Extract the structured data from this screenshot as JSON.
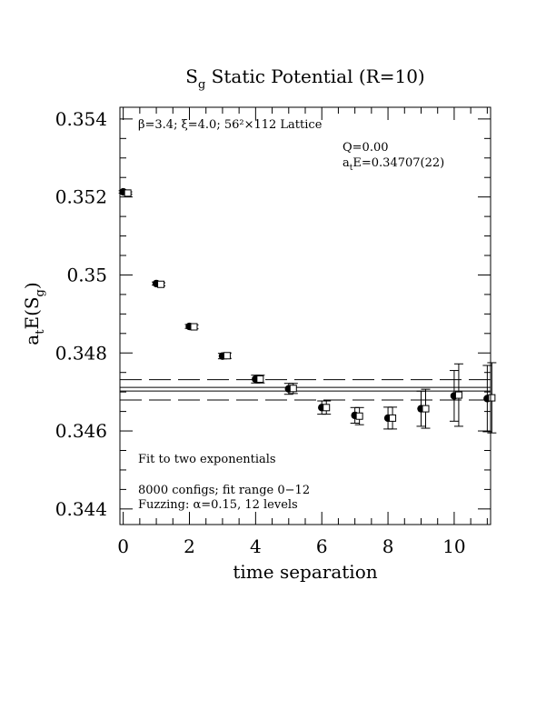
{
  "chart_data": {
    "type": "scatter",
    "title": {
      "main": "S",
      "sub": "g",
      "rest": " Static Potential (R=10)"
    },
    "xlabel": "time separation",
    "ylabel": {
      "a": "a",
      "a_sub": "t",
      "mid": "E(S",
      "s_sub": "g",
      "end": ")"
    },
    "xlim": [
      -0.1,
      11.1
    ],
    "ylim": [
      0.3436,
      0.3543
    ],
    "x_ticks": [
      0,
      2,
      4,
      6,
      8,
      10
    ],
    "x_tick_labels": [
      "0",
      "2",
      "4",
      "6",
      "8",
      "10"
    ],
    "y_ticks": [
      0.344,
      0.346,
      0.348,
      0.35,
      0.352,
      0.354
    ],
    "y_tick_labels": [
      "0.344",
      "0.346",
      "0.348",
      "0.35",
      "0.352",
      "0.354"
    ],
    "x_minor_step": 0.5,
    "y_minor_step": 0.0005,
    "annotations": {
      "lattice": "β=3.4; ξ=4.0; 56²×112 Lattice",
      "q": "Q=0.00",
      "fit_a": "a",
      "fit_sub": "t",
      "fit_rest": "E=0.34707(22)",
      "fit_desc": "Fit to two exponentials",
      "configs": "8000 configs; fit range 0−12",
      "fuzzing": "Fuzzing: α=0.15, 12 levels"
    },
    "fit": {
      "value": 0.34707,
      "error": 0.00022,
      "error_band_dashed": [
        0.346795,
        0.347315
      ]
    },
    "series": [
      {
        "marker": "filled-circle",
        "points": [
          {
            "x": 0,
            "y": 0.35213,
            "err": 3e-05
          },
          {
            "x": 1,
            "y": 0.34978,
            "err": 4e-05
          },
          {
            "x": 2,
            "y": 0.34868,
            "err": 5e-05
          },
          {
            "x": 3,
            "y": 0.34792,
            "err": 7e-05
          },
          {
            "x": 4,
            "y": 0.34733,
            "err": 0.0001
          },
          {
            "x": 5,
            "y": 0.34708,
            "err": 0.00014
          },
          {
            "x": 6,
            "y": 0.3466,
            "err": 0.00017
          },
          {
            "x": 7,
            "y": 0.3464,
            "err": 0.0002
          },
          {
            "x": 8,
            "y": 0.34633,
            "err": 0.00028
          },
          {
            "x": 9,
            "y": 0.34657,
            "err": 0.00045
          },
          {
            "x": 10,
            "y": 0.3469,
            "err": 0.00065
          },
          {
            "x": 11,
            "y": 0.34683,
            "err": 0.00085
          }
        ]
      },
      {
        "marker": "open-square",
        "points": [
          {
            "x": 0,
            "y": 0.3521,
            "err": 3e-05
          },
          {
            "x": 1,
            "y": 0.34976,
            "err": 4e-05
          },
          {
            "x": 2,
            "y": 0.34867,
            "err": 5e-05
          },
          {
            "x": 3,
            "y": 0.34793,
            "err": 7e-05
          },
          {
            "x": 4,
            "y": 0.34733,
            "err": 0.0001
          },
          {
            "x": 5,
            "y": 0.34709,
            "err": 0.00013
          },
          {
            "x": 6,
            "y": 0.3466,
            "err": 0.00017
          },
          {
            "x": 7,
            "y": 0.34638,
            "err": 0.00022
          },
          {
            "x": 8,
            "y": 0.34633,
            "err": 0.00028
          },
          {
            "x": 9,
            "y": 0.34657,
            "err": 0.0005
          },
          {
            "x": 10,
            "y": 0.34692,
            "err": 0.0008
          },
          {
            "x": 11,
            "y": 0.34685,
            "err": 0.0009
          }
        ]
      }
    ],
    "grid": false,
    "legend": "none"
  }
}
